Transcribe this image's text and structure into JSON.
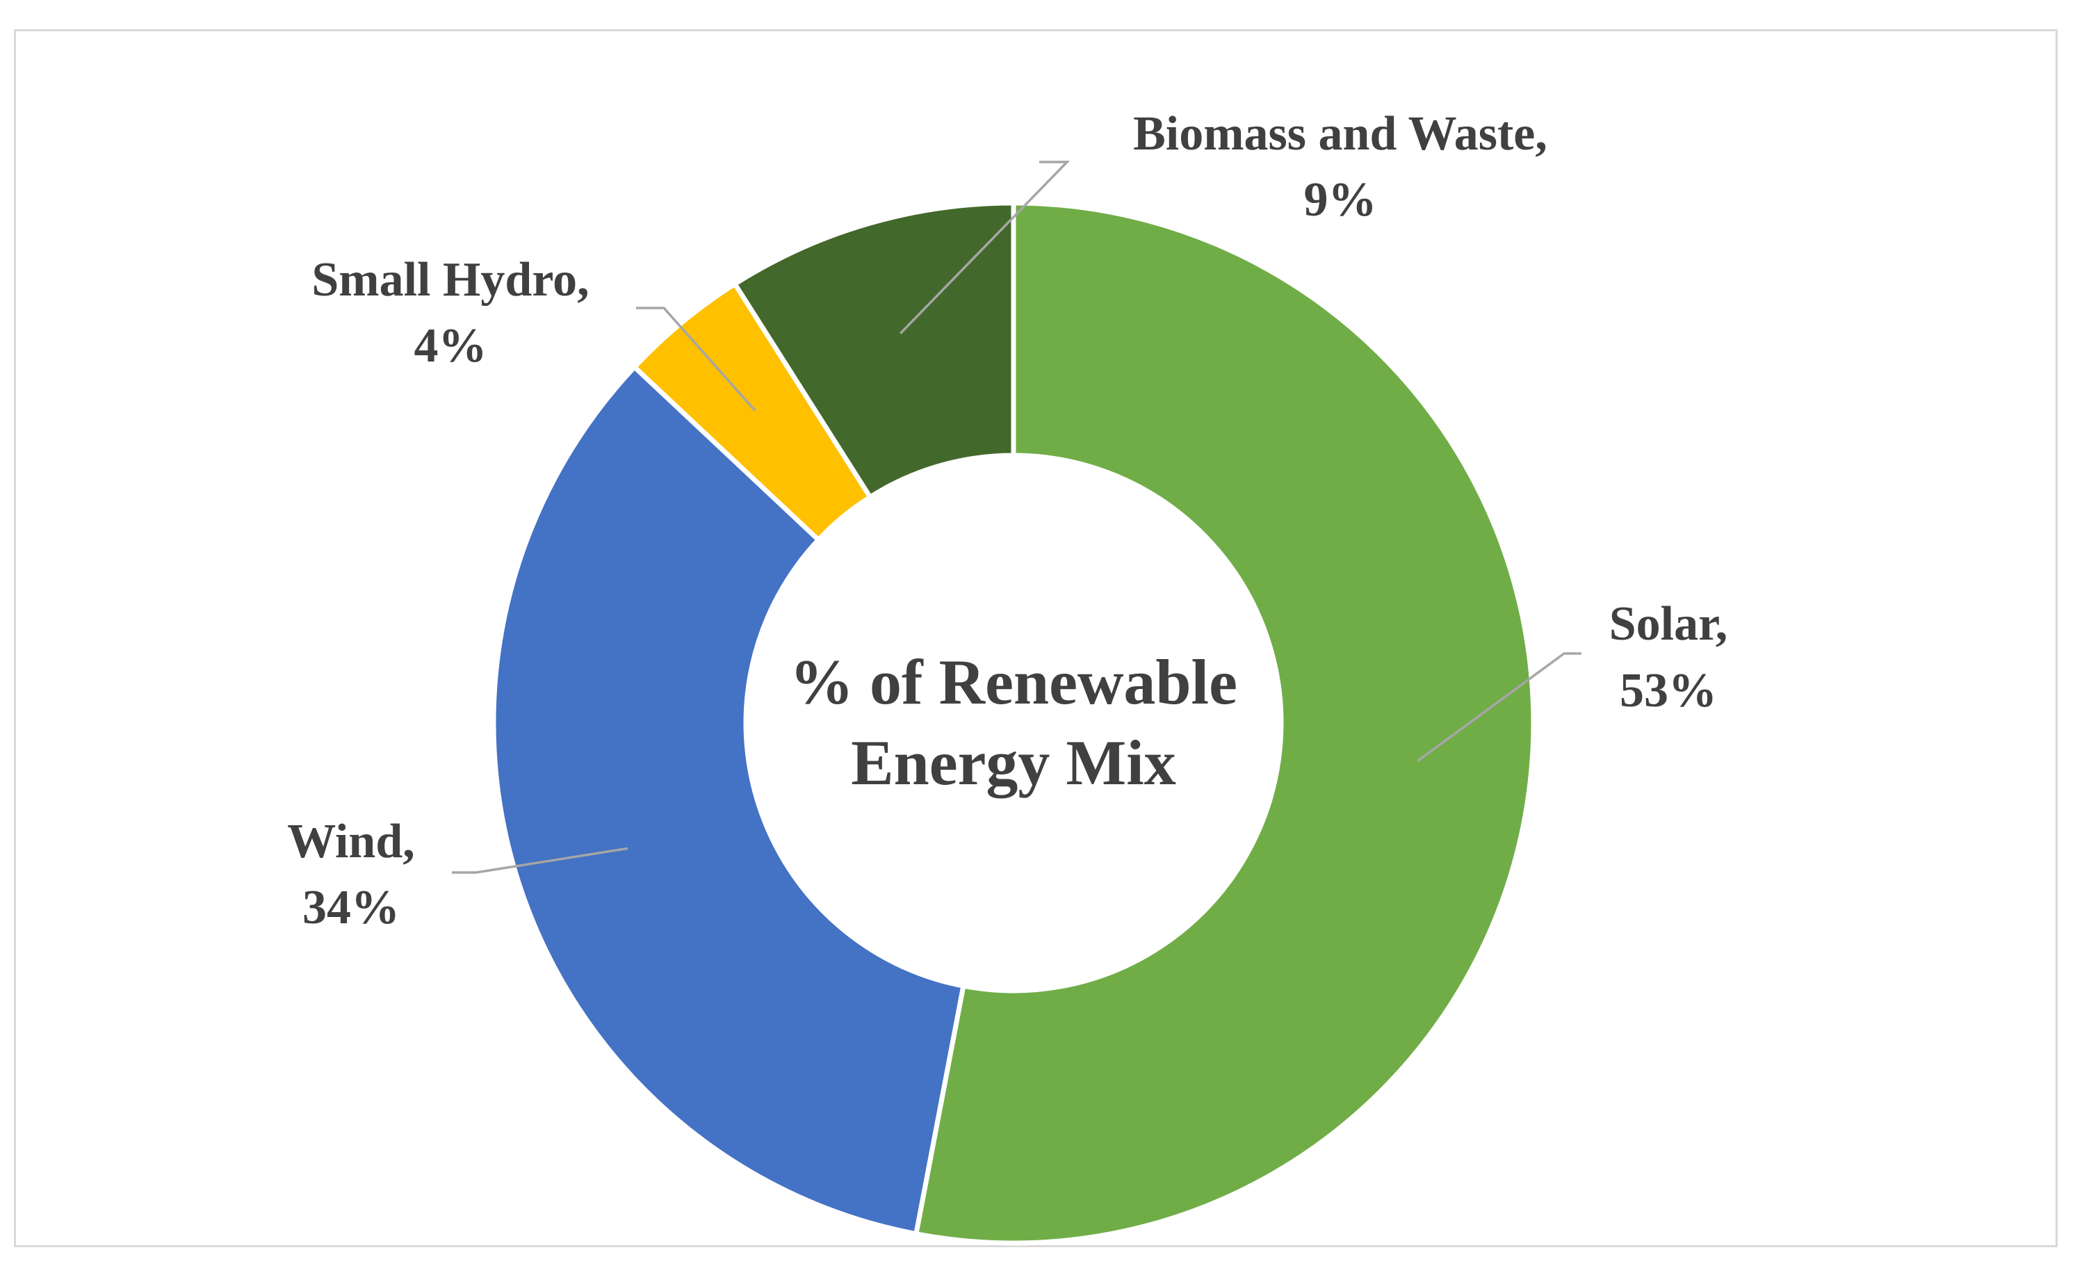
{
  "chart_data": {
    "type": "pie",
    "variant": "doughnut",
    "center_title": [
      "% of Renewable",
      "Energy Mix"
    ],
    "legend": "none",
    "slices": [
      {
        "name": "Solar",
        "value": 53,
        "label_line1": "Solar,",
        "label_line2": "53%",
        "color": "#70AD47"
      },
      {
        "name": "Wind",
        "value": 34,
        "label_line1": "Wind,",
        "label_line2": "34%",
        "color": "#4472C4"
      },
      {
        "name": "Small Hydro",
        "value": 4,
        "label_line1": "Small Hydro,",
        "label_line2": "4%",
        "color": "#FFC000"
      },
      {
        "name": "Biomass and Waste",
        "value": 9,
        "label_line1": "Biomass and Waste,",
        "label_line2": "9%",
        "color": "#43682B"
      }
    ]
  }
}
